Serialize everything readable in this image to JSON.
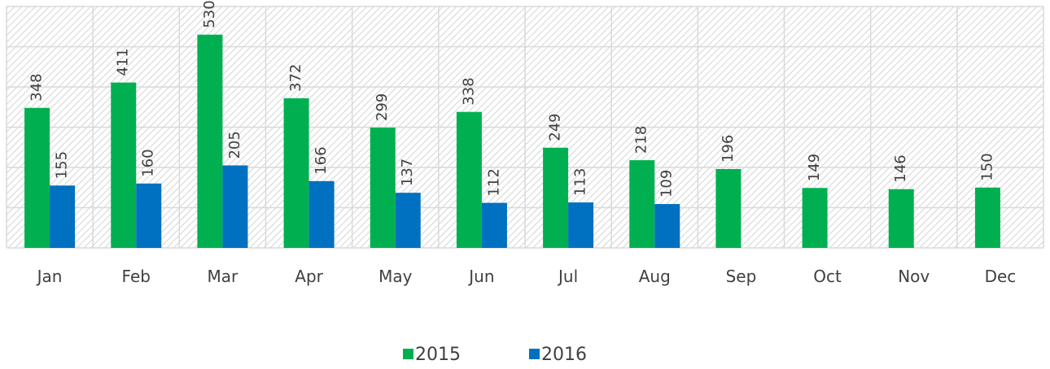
{
  "chart_data": {
    "type": "bar",
    "categories": [
      "Jan",
      "Feb",
      "Mar",
      "Apr",
      "May",
      "Jun",
      "Jul",
      "Aug",
      "Sep",
      "Oct",
      "Nov",
      "Dec"
    ],
    "series": [
      {
        "name": "2015",
        "color": "#00b050",
        "values": [
          348,
          411,
          530,
          372,
          299,
          338,
          249,
          218,
          196,
          149,
          146,
          150
        ]
      },
      {
        "name": "2016",
        "color": "#0070c0",
        "values": [
          155,
          160,
          205,
          166,
          137,
          112,
          113,
          109,
          null,
          null,
          null,
          null
        ]
      }
    ],
    "ylim": [
      0,
      600
    ],
    "yticks": [
      0,
      100,
      200,
      300,
      400,
      500,
      600
    ],
    "grid": true,
    "legend": "bottom"
  }
}
